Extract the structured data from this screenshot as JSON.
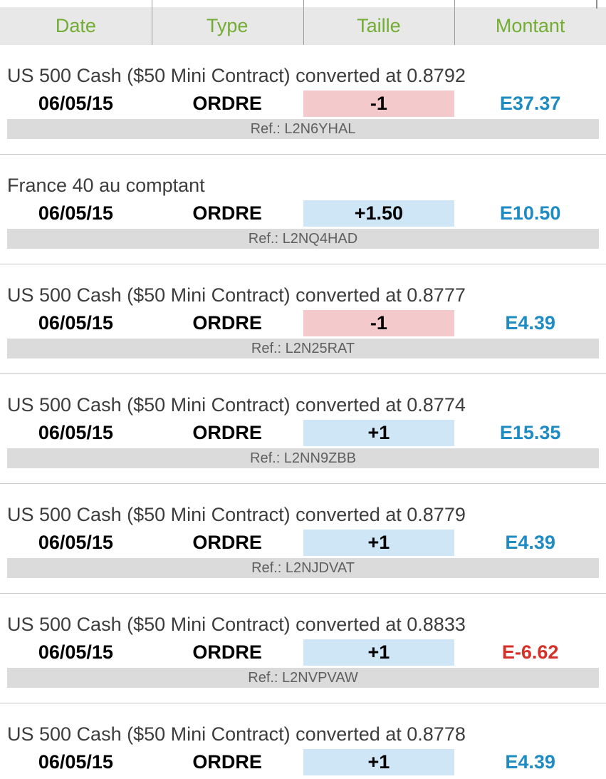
{
  "header": {
    "columns": [
      "Date",
      "Type",
      "Taille",
      "Montant"
    ]
  },
  "colors": {
    "header_green": "#73ad33",
    "amount_positive": "#1e8bc3",
    "amount_negative": "#d63129",
    "size_positive_bg": "#cfe6f7",
    "size_negative_bg": "#f4c9cc",
    "ref_bar_bg": "#dbdbdb",
    "header_bg": "#e8e8e8"
  },
  "transactions": [
    {
      "title": "US 500 Cash ($50 Mini Contract) converted at 0.8792",
      "date": "06/05/15",
      "type": "ORDRE",
      "size": "-1",
      "size_variant": "negative",
      "amount": "E37.37",
      "amount_variant": "positive",
      "ref": "Ref.: L2N6YHAL"
    },
    {
      "title": "France 40 au comptant",
      "date": "06/05/15",
      "type": "ORDRE",
      "size": "+1.50",
      "size_variant": "positive",
      "amount": "E10.50",
      "amount_variant": "positive",
      "ref": "Ref.: L2NQ4HAD"
    },
    {
      "title": "US 500 Cash ($50 Mini Contract) converted at 0.8777",
      "date": "06/05/15",
      "type": "ORDRE",
      "size": "-1",
      "size_variant": "negative",
      "amount": "E4.39",
      "amount_variant": "positive",
      "ref": "Ref.: L2N25RAT"
    },
    {
      "title": "US 500 Cash ($50 Mini Contract) converted at 0.8774",
      "date": "06/05/15",
      "type": "ORDRE",
      "size": "+1",
      "size_variant": "positive",
      "amount": "E15.35",
      "amount_variant": "positive",
      "ref": "Ref.: L2NN9ZBB"
    },
    {
      "title": "US 500 Cash ($50 Mini Contract) converted at 0.8779",
      "date": "06/05/15",
      "type": "ORDRE",
      "size": "+1",
      "size_variant": "positive",
      "amount": "E4.39",
      "amount_variant": "positive",
      "ref": "Ref.: L2NJDVAT"
    },
    {
      "title": "US 500 Cash ($50 Mini Contract) converted at 0.8833",
      "date": "06/05/15",
      "type": "ORDRE",
      "size": "+1",
      "size_variant": "positive",
      "amount": "E-6.62",
      "amount_variant": "negative",
      "ref": "Ref.: L2NVPVAW"
    },
    {
      "title": "US 500 Cash ($50 Mini Contract) converted at 0.8778",
      "date": "06/05/15",
      "type": "ORDRE",
      "size": "+1",
      "size_variant": "positive",
      "amount": "E4.39",
      "amount_variant": "positive"
    }
  ]
}
